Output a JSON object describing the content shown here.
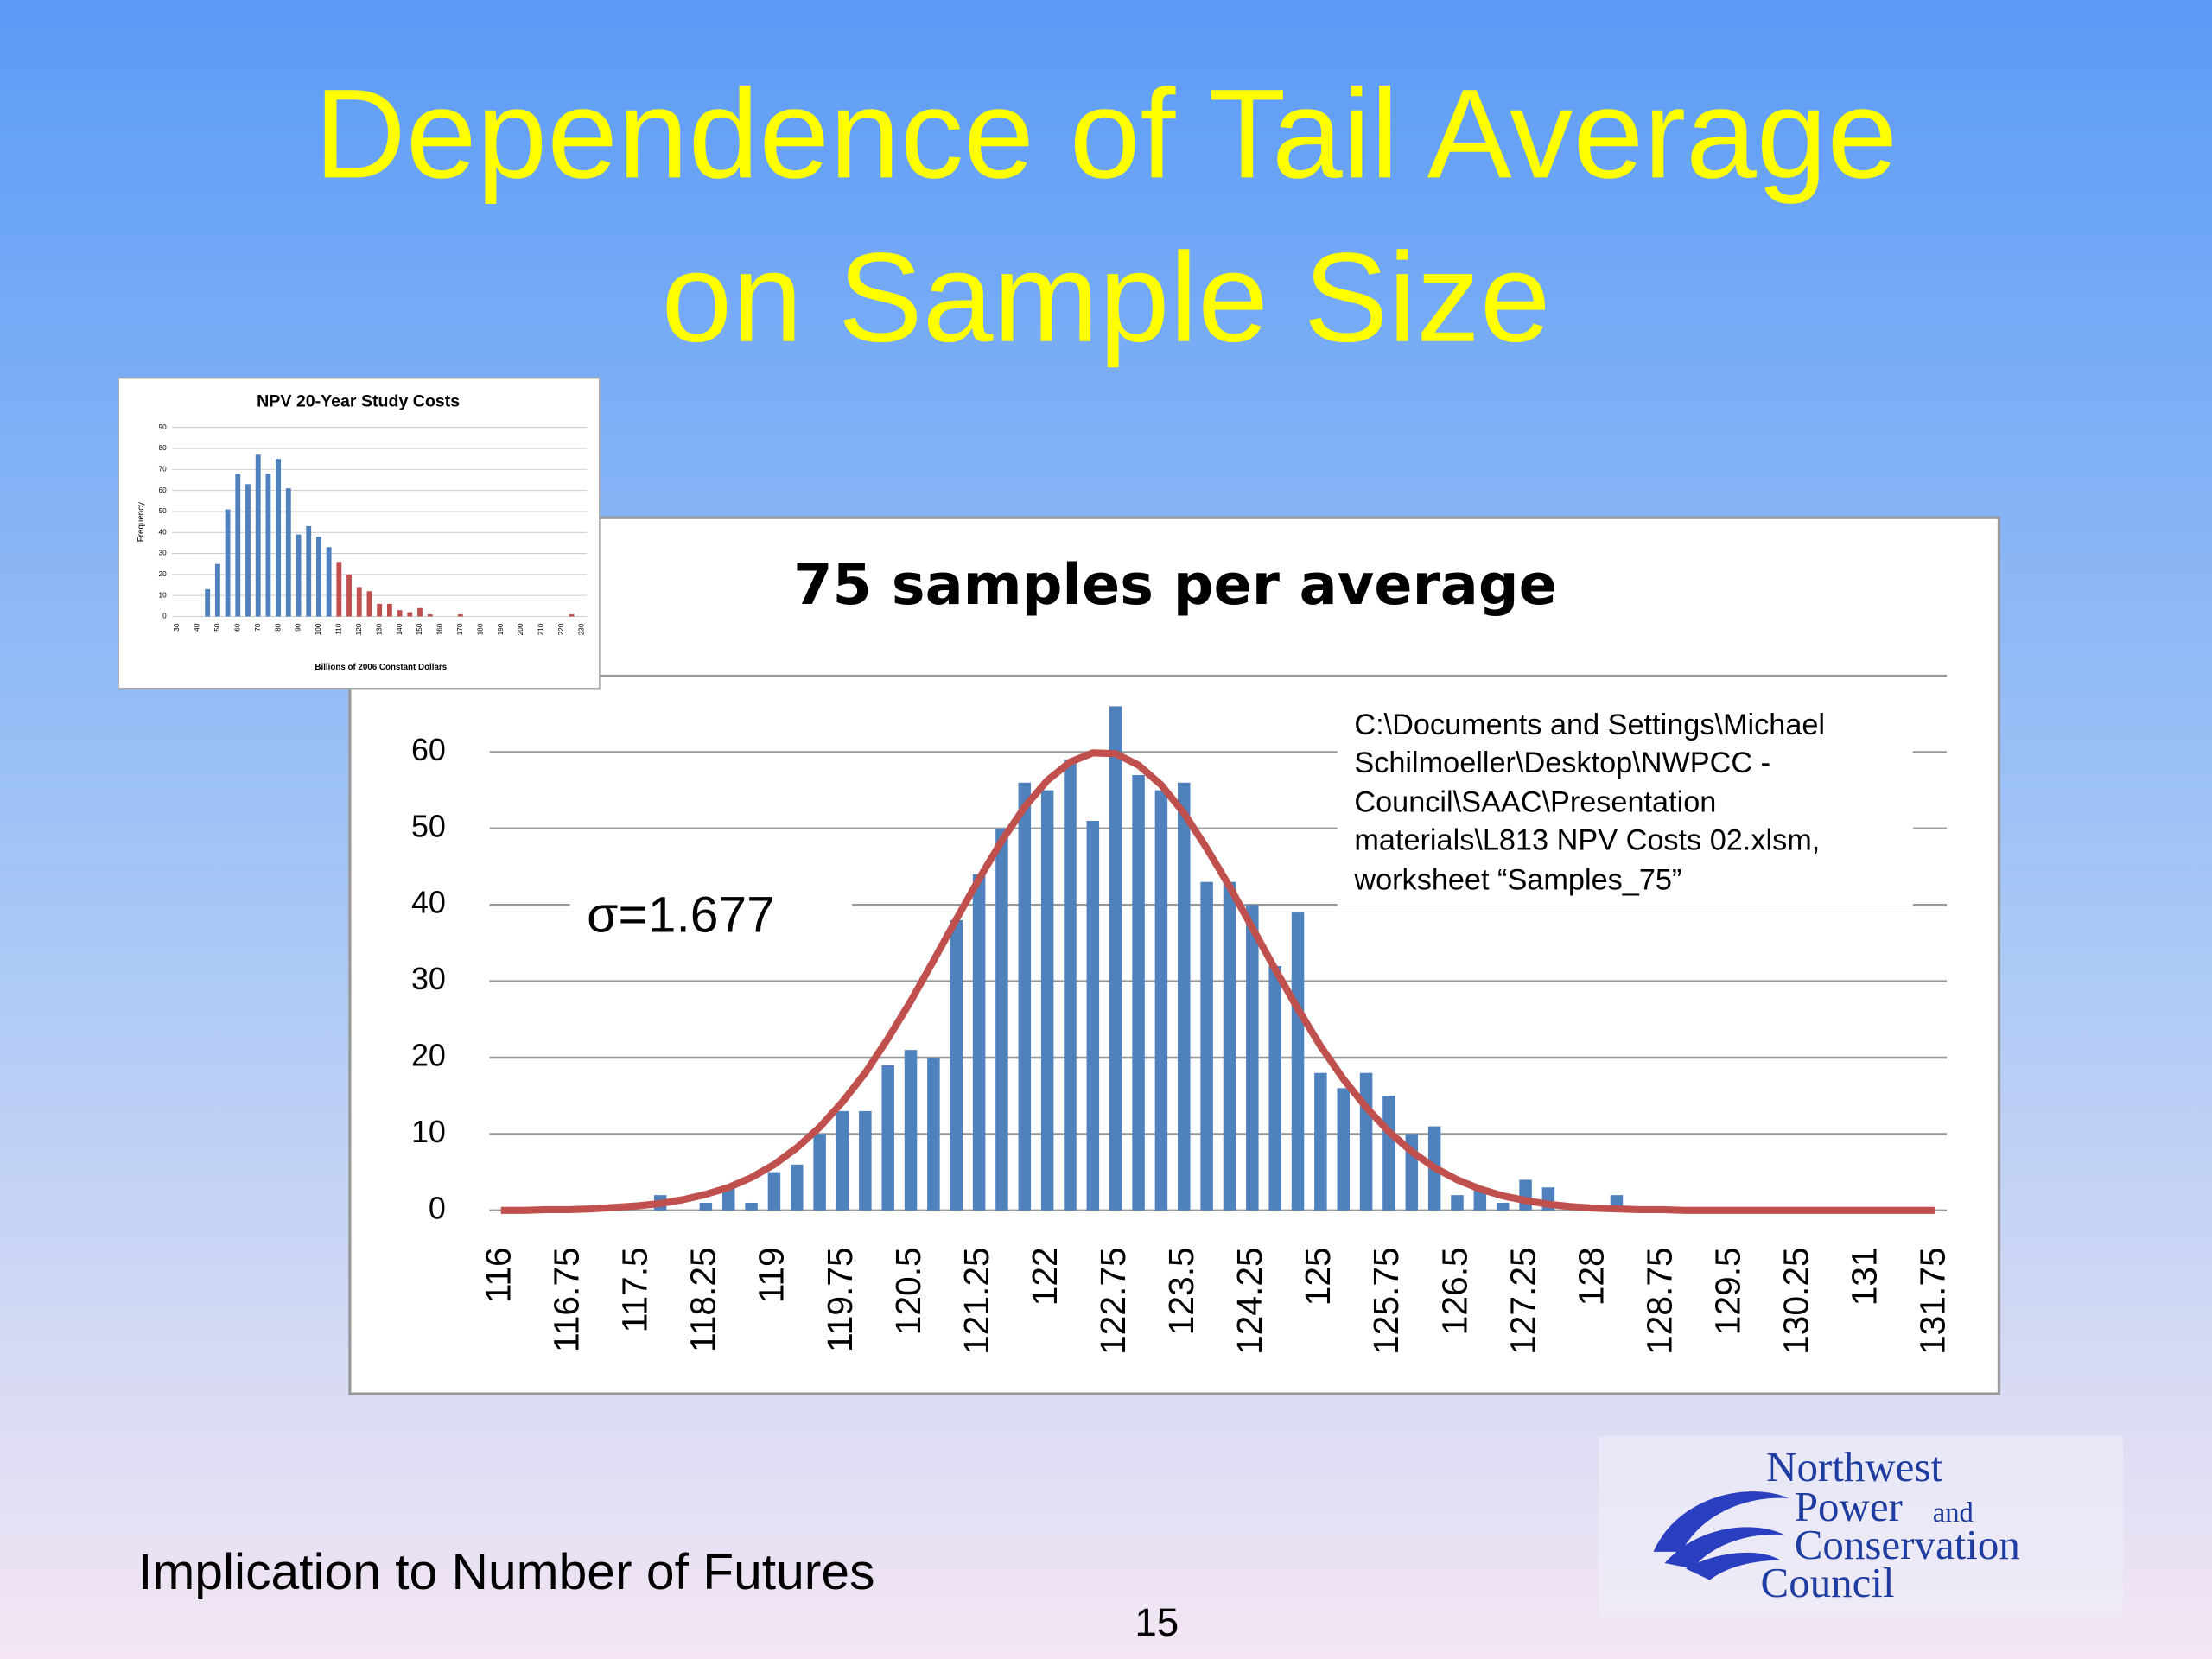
{
  "slide": {
    "title": [
      "Dependence of Tail Average",
      "on Sample Size"
    ],
    "footer": "Implication to Number of Futures",
    "page_number": 15,
    "logo": [
      "Northwest",
      "Power",
      "and",
      "Conservation",
      "Council"
    ]
  },
  "chart_data": [
    {
      "type": "bar",
      "title": "75 samples per average",
      "annotation": "σ=1.677",
      "note": [
        "C:\\Documents and Settings\\Michael",
        "Schilmoeller\\Desktop\\NWPCC -",
        "Council\\SAAC\\Presentation",
        "materials\\L813 NPV Costs 02.xlsm,",
        "worksheet “Samples_75”"
      ],
      "categories": [
        116,
        null,
        null,
        116.75,
        null,
        null,
        117.5,
        null,
        null,
        118.25,
        null,
        null,
        119,
        null,
        null,
        119.75,
        null,
        null,
        120.5,
        null,
        null,
        121.25,
        null,
        null,
        122,
        null,
        null,
        122.75,
        null,
        null,
        123.5,
        null,
        null,
        124.25,
        null,
        null,
        125,
        null,
        null,
        125.75,
        null,
        null,
        126.5,
        null,
        null,
        127.25,
        null,
        null,
        128,
        null,
        null,
        128.75,
        null,
        null,
        129.5,
        null,
        null,
        130.25,
        null,
        null,
        131,
        null,
        null,
        131.75
      ],
      "series": [
        {
          "type": "bar",
          "color": "#4f81bd",
          "values": [
            0,
            0,
            0,
            0,
            0,
            0,
            0,
            2,
            0,
            1,
            3,
            1,
            5,
            6,
            10,
            13,
            13,
            19,
            21,
            20,
            38,
            44,
            50,
            56,
            55,
            59,
            51,
            66,
            57,
            55,
            56,
            43,
            43,
            40,
            32,
            39,
            18,
            16,
            18,
            15,
            10,
            11,
            2,
            3,
            1,
            4,
            3,
            0,
            0,
            2,
            0,
            0,
            0,
            0,
            0,
            0,
            0,
            0,
            0,
            0,
            0,
            0,
            0,
            0
          ]
        },
        {
          "type": "line",
          "color": "#c0504d",
          "values": [
            0,
            0,
            0.1,
            0.1,
            0.2,
            0.4,
            0.6,
            0.9,
            1.4,
            2.1,
            3.0,
            4.3,
            6.0,
            8.2,
            10.9,
            14.2,
            18.0,
            22.5,
            27.4,
            32.7,
            38.1,
            43.4,
            48.4,
            52.8,
            56.3,
            58.7,
            59.9,
            59.8,
            58.3,
            55.7,
            52.0,
            47.4,
            42.4,
            37.0,
            31.6,
            26.4,
            21.5,
            17.2,
            13.5,
            10.3,
            7.7,
            5.6,
            4.0,
            2.8,
            1.9,
            1.3,
            0.8,
            0.5,
            0.3,
            0.2,
            0.1,
            0.1,
            0,
            0,
            0,
            0,
            0,
            0,
            0,
            0,
            0,
            0,
            0,
            0
          ]
        }
      ],
      "ylim": [
        0,
        70
      ],
      "yticks": [
        0,
        10,
        20,
        30,
        40,
        50,
        60
      ],
      "grid": true
    },
    {
      "type": "bar",
      "title": "NPV 20-Year Study Costs",
      "ylabel": "Frequency",
      "xlabel": "Billions of 2006 Constant Dollars",
      "categories": [
        30,
        null,
        40,
        null,
        50,
        null,
        60,
        null,
        70,
        null,
        80,
        null,
        90,
        null,
        100,
        null,
        110,
        null,
        120,
        null,
        130,
        null,
        140,
        null,
        150,
        null,
        160,
        null,
        170,
        null,
        180,
        null,
        190,
        null,
        200,
        null,
        210,
        null,
        220,
        null,
        230
      ],
      "series": [
        {
          "type": "bar",
          "color": "#4f81bd",
          "values": [
            0,
            0,
            0,
            13,
            25,
            51,
            68,
            63,
            77,
            68,
            75,
            61,
            39,
            43,
            38,
            33,
            null,
            null,
            null,
            null,
            null,
            null,
            null,
            null,
            null,
            null,
            null,
            null,
            null,
            null,
            null,
            null,
            null,
            null,
            null,
            null,
            null,
            null,
            null,
            null,
            null
          ]
        },
        {
          "type": "bar",
          "color": "#c0504d",
          "values": [
            null,
            null,
            null,
            null,
            null,
            null,
            null,
            null,
            null,
            null,
            null,
            null,
            null,
            null,
            null,
            null,
            26,
            20,
            14,
            12,
            6,
            6,
            3,
            2,
            4,
            1,
            0,
            0,
            1,
            0,
            0,
            0,
            0,
            0,
            0,
            0,
            0,
            0,
            0,
            1,
            0
          ]
        }
      ],
      "ylim": [
        0,
        90
      ],
      "yticks": [
        0,
        10,
        20,
        30,
        40,
        50,
        60,
        70,
        80,
        90
      ],
      "grid": true
    }
  ]
}
